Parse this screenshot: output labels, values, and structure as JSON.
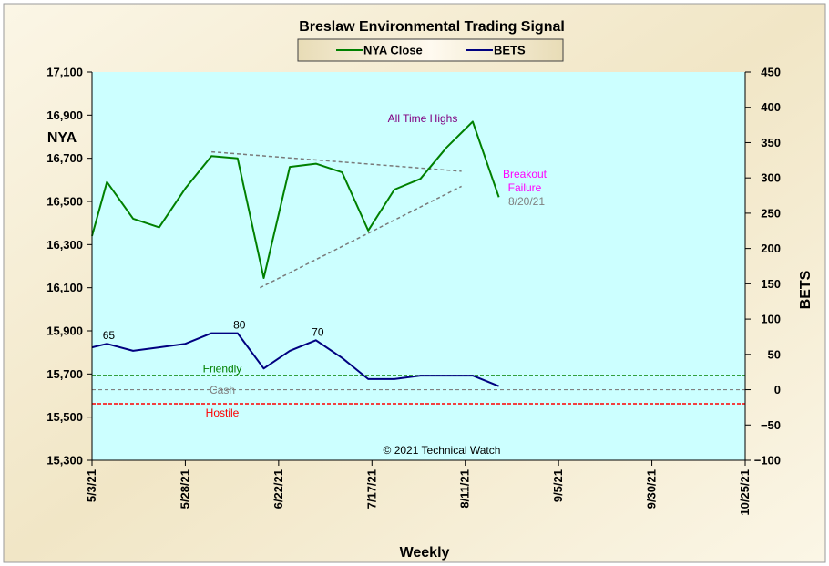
{
  "chart_data": {
    "type": "line",
    "title": "Breslaw Environmental  Trading Signal",
    "xlabel": "Weekly",
    "ylabel_left": "NYA",
    "ylabel_right": "BETS",
    "copyright": "© 2021 Technical Watch",
    "colors": {
      "plot_bg": "#ccffff",
      "frame_bg": "#f5ecd2",
      "nya": "#008000",
      "bets": "#000080",
      "friendly": "#008000",
      "cash": "#808080",
      "hostile": "#ff0000",
      "all_time_highs": "#800080",
      "breakout": "#ff00ff",
      "date_note": "#808080"
    },
    "x_ticks": [
      "5/3/21",
      "5/28/21",
      "6/22/21",
      "7/17/21",
      "8/11/21",
      "9/5/21",
      "9/30/21",
      "10/25/21"
    ],
    "x_range": [
      "2021-05-03",
      "2021-10-25"
    ],
    "ylim_left": [
      15300,
      17100
    ],
    "yticks_left": [
      "17,100",
      "16,900",
      "16,700",
      "16,500",
      "16,300",
      "16,100",
      "15,900",
      "15,700",
      "15,500",
      "15,300"
    ],
    "ylim_right": [
      -100,
      450
    ],
    "yticks_right": [
      "450",
      "400",
      "350",
      "300",
      "250",
      "200",
      "150",
      "100",
      "50",
      "0",
      "−50",
      "−100"
    ],
    "dates": [
      "2021-05-03",
      "2021-05-07",
      "2021-05-14",
      "2021-05-21",
      "2021-05-28",
      "2021-06-04",
      "2021-06-11",
      "2021-06-18",
      "2021-06-25",
      "2021-07-02",
      "2021-07-09",
      "2021-07-16",
      "2021-07-23",
      "2021-07-30",
      "2021-08-06",
      "2021-08-13",
      "2021-08-20"
    ],
    "series": [
      {
        "name": "NYA Close",
        "axis": "left",
        "values": [
          16340,
          16590,
          16420,
          16380,
          16560,
          16710,
          16700,
          16145,
          16660,
          16675,
          16635,
          16365,
          16555,
          16605,
          16750,
          16870,
          16520
        ]
      },
      {
        "name": "BETS",
        "axis": "right",
        "values": [
          60,
          65,
          55,
          60,
          65,
          80,
          80,
          30,
          55,
          70,
          45,
          15,
          15,
          20,
          20,
          20,
          5
        ]
      }
    ],
    "levels": [
      {
        "name": "Friendly",
        "value": 20
      },
      {
        "name": "Cash",
        "value": 0
      },
      {
        "name": "Hostile",
        "value": -20
      }
    ],
    "trendlines": [
      {
        "from": [
          "2021-06-04",
          16730
        ],
        "to": [
          "2021-08-10",
          16640
        ]
      },
      {
        "from": [
          "2021-06-17",
          16100
        ],
        "to": [
          "2021-08-10",
          16570
        ]
      }
    ],
    "data_labels": [
      {
        "text": "65",
        "date": "2021-05-07",
        "value": 65
      },
      {
        "text": "80",
        "date": "2021-06-11",
        "value": 80
      },
      {
        "text": "70",
        "date": "2021-07-02",
        "value": 70
      }
    ],
    "annotations": {
      "all_time_highs": "All Time Highs",
      "breakout_1": "Breakout",
      "breakout_2": "Failure",
      "date_note": "8/20/21"
    }
  }
}
